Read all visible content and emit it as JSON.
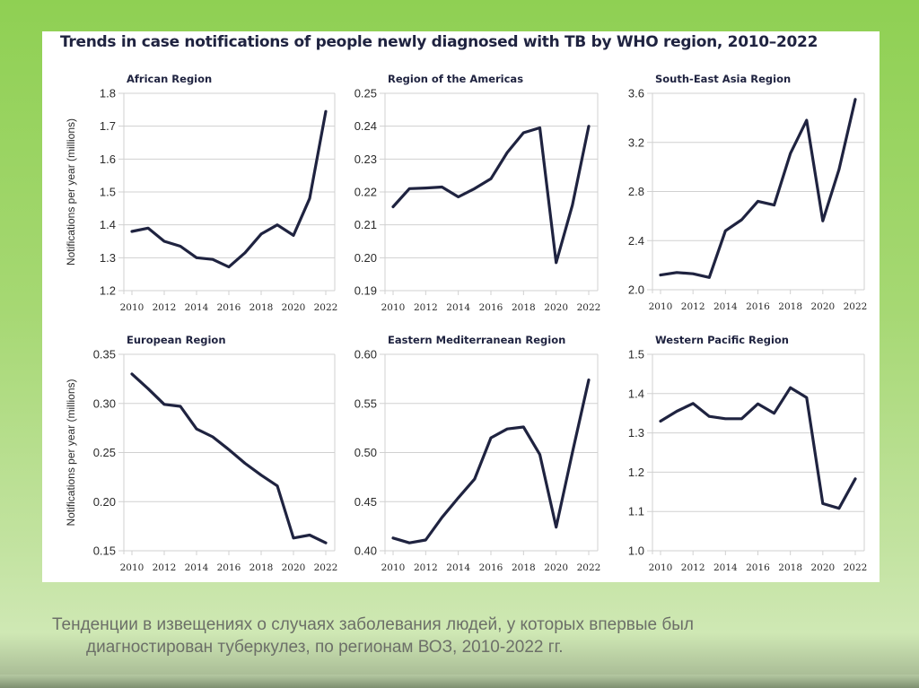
{
  "figure_title": "Trends in case notifications of people newly diagnosed with TB by WHO region, 2010–2022",
  "caption": {
    "line1": "Тенденции в извещениях о случаях заболевания людей, у которых впервые был",
    "line2": "диагностирован туберкулез, по регионам ВОЗ, 2010-2022 гг."
  },
  "colors": {
    "line": "#1f2340",
    "grid": "#d0d0d0",
    "slide_green": "#8fd053"
  },
  "chart_data": [
    {
      "type": "line",
      "title": "African Region",
      "ylabel": "Notifications per year (millions)",
      "xlabel": "",
      "x": [
        2010,
        2011,
        2012,
        2013,
        2014,
        2015,
        2016,
        2017,
        2018,
        2019,
        2020,
        2021,
        2022
      ],
      "xticks": [
        "2010",
        "2012",
        "2014",
        "2016",
        "2018",
        "2020",
        "2022"
      ],
      "yticks": [
        "1.2",
        "1.3",
        "1.4",
        "1.5",
        "1.6",
        "1.7",
        "1.8"
      ],
      "ylim": [
        1.2,
        1.8
      ],
      "grid": true,
      "series": [
        {
          "name": "African Region",
          "values": [
            1.38,
            1.39,
            1.35,
            1.335,
            1.3,
            1.295,
            1.272,
            1.315,
            1.372,
            1.4,
            1.368,
            1.48,
            1.745
          ]
        }
      ]
    },
    {
      "type": "line",
      "title": "Region of the Americas",
      "ylabel": "",
      "xlabel": "",
      "x": [
        2010,
        2011,
        2012,
        2013,
        2014,
        2015,
        2016,
        2017,
        2018,
        2019,
        2020,
        2021,
        2022
      ],
      "xticks": [
        "2010",
        "2012",
        "2014",
        "2016",
        "2018",
        "2020",
        "2022"
      ],
      "yticks": [
        "0.19",
        "0.20",
        "0.21",
        "0.22",
        "0.23",
        "0.24",
        "0.25"
      ],
      "ylim": [
        0.19,
        0.25
      ],
      "grid": true,
      "series": [
        {
          "name": "Region of the Americas",
          "values": [
            0.2155,
            0.221,
            0.2212,
            0.2215,
            0.2185,
            0.221,
            0.224,
            0.232,
            0.238,
            0.2395,
            0.1985,
            0.216,
            0.24
          ]
        }
      ]
    },
    {
      "type": "line",
      "title": "South-East Asia Region",
      "ylabel": "",
      "xlabel": "",
      "x": [
        2010,
        2011,
        2012,
        2013,
        2014,
        2015,
        2016,
        2017,
        2018,
        2019,
        2020,
        2021,
        2022
      ],
      "xticks": [
        "2010",
        "2012",
        "2014",
        "2016",
        "2018",
        "2020",
        "2022"
      ],
      "yticks": [
        "2.0",
        "2.4",
        "2.8",
        "3.2",
        "3.6"
      ],
      "ylim": [
        2.0,
        3.6
      ],
      "grid": true,
      "series": [
        {
          "name": "South-East Asia Region",
          "values": [
            2.12,
            2.14,
            2.13,
            2.1,
            2.48,
            2.57,
            2.72,
            2.69,
            3.11,
            3.38,
            2.56,
            2.98,
            3.55
          ]
        }
      ]
    },
    {
      "type": "line",
      "title": "European Region",
      "ylabel": "Notifications per year (millions)",
      "xlabel": "",
      "x": [
        2010,
        2011,
        2012,
        2013,
        2014,
        2015,
        2016,
        2017,
        2018,
        2019,
        2020,
        2021,
        2022
      ],
      "xticks": [
        "2010",
        "2012",
        "2014",
        "2016",
        "2018",
        "2020",
        "2022"
      ],
      "yticks": [
        "0.15",
        "0.20",
        "0.25",
        "0.30",
        "0.35"
      ],
      "ylim": [
        0.15,
        0.35
      ],
      "grid": true,
      "series": [
        {
          "name": "European Region",
          "values": [
            0.33,
            0.315,
            0.299,
            0.297,
            0.274,
            0.266,
            0.253,
            0.239,
            0.227,
            0.216,
            0.163,
            0.166,
            0.158
          ]
        }
      ]
    },
    {
      "type": "line",
      "title": "Eastern Mediterranean Region",
      "ylabel": "",
      "xlabel": "",
      "x": [
        2010,
        2011,
        2012,
        2013,
        2014,
        2015,
        2016,
        2017,
        2018,
        2019,
        2020,
        2021,
        2022
      ],
      "xticks": [
        "2010",
        "2012",
        "2014",
        "2016",
        "2018",
        "2020",
        "2022"
      ],
      "yticks": [
        "0.40",
        "0.45",
        "0.50",
        "0.55",
        "0.60"
      ],
      "ylim": [
        0.4,
        0.6
      ],
      "grid": true,
      "series": [
        {
          "name": "Eastern Mediterranean Region",
          "values": [
            0.413,
            0.408,
            0.411,
            0.434,
            0.454,
            0.473,
            0.515,
            0.524,
            0.526,
            0.498,
            0.424,
            0.5,
            0.574
          ]
        }
      ]
    },
    {
      "type": "line",
      "title": "Western Pacific Region",
      "ylabel": "",
      "xlabel": "",
      "x": [
        2010,
        2011,
        2012,
        2013,
        2014,
        2015,
        2016,
        2017,
        2018,
        2019,
        2020,
        2021,
        2022
      ],
      "xticks": [
        "2010",
        "2012",
        "2014",
        "2016",
        "2018",
        "2020",
        "2022"
      ],
      "yticks": [
        "1.0",
        "1.1",
        "1.2",
        "1.3",
        "1.4",
        "1.5"
      ],
      "ylim": [
        1.0,
        1.5
      ],
      "grid": true,
      "series": [
        {
          "name": "Western Pacific Region",
          "values": [
            1.33,
            1.355,
            1.375,
            1.342,
            1.336,
            1.336,
            1.374,
            1.35,
            1.415,
            1.39,
            1.12,
            1.108,
            1.183
          ]
        }
      ]
    }
  ]
}
